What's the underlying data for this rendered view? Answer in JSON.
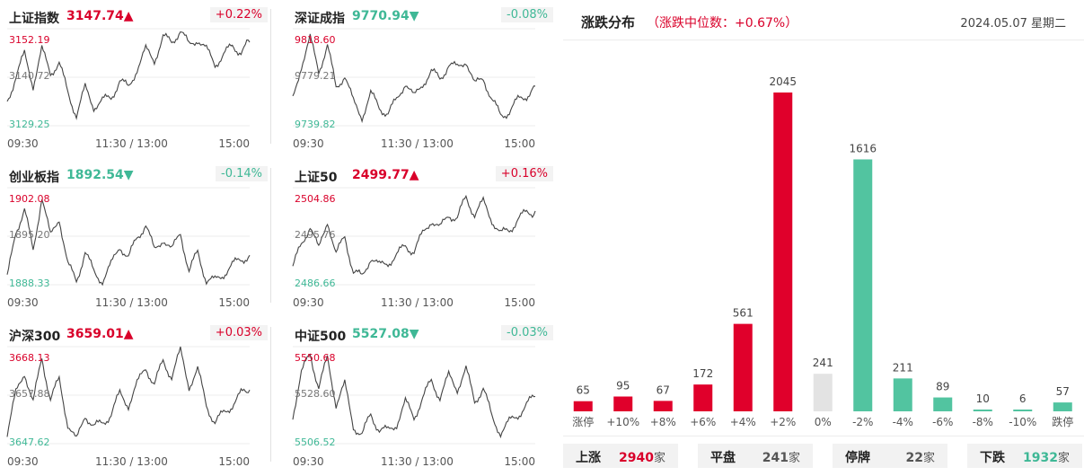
{
  "indices": [
    {
      "name": "上证指数",
      "value": "3147.74",
      "arrow": "▲",
      "dir": "up",
      "change": "+0.22%",
      "high": "3152.19",
      "mid": "3140.72",
      "low": "3129.25",
      "x_labels": [
        "09:30",
        "11:30 / 13:00",
        "15:00"
      ],
      "series": [
        3135,
        3141,
        3146,
        3139,
        3147,
        3142,
        3144,
        3137,
        3132,
        3138,
        3134,
        3135,
        3136,
        3140,
        3138,
        3143,
        3147,
        3145,
        3150,
        3149,
        3152,
        3148,
        3150,
        3147,
        3144,
        3146,
        3148,
        3147,
        3149
      ]
    },
    {
      "name": "深证成指",
      "value": "9770.94",
      "arrow": "▼",
      "dir": "dn",
      "change": "-0.08%",
      "high": "9818.60",
      "mid": "9779.21",
      "low": "9739.82",
      "x_labels": [
        "09:30",
        "11:30 / 13:00",
        "15:00"
      ],
      "series": [
        9760,
        9790,
        9810,
        9785,
        9805,
        9770,
        9782,
        9758,
        9748,
        9765,
        9755,
        9750,
        9760,
        9776,
        9762,
        9775,
        9783,
        9778,
        9790,
        9786,
        9794,
        9772,
        9780,
        9760,
        9748,
        9752,
        9760,
        9765,
        9772
      ]
    },
    {
      "name": "创业板指",
      "value": "1892.54",
      "arrow": "▼",
      "dir": "dn",
      "change": "-0.14%",
      "high": "1902.08",
      "mid": "1895.20",
      "low": "1888.33",
      "x_labels": [
        "09:30",
        "11:30 / 13:00",
        "15:00"
      ],
      "series": [
        1889,
        1896,
        1899,
        1893,
        1901,
        1895,
        1898,
        1891,
        1889,
        1893,
        1890,
        1889,
        1891,
        1894,
        1892,
        1895,
        1897,
        1893,
        1895,
        1893,
        1896,
        1890,
        1893,
        1889,
        1888.8,
        1890,
        1891,
        1892,
        1892.5
      ]
    },
    {
      "name": "上证50",
      "value": "2499.77",
      "arrow": "▲",
      "dir": "up",
      "change": "+0.16%",
      "high": "2504.86",
      "mid": "2495.76",
      "low": "2486.66",
      "x_labels": [
        "09:30",
        "11:30 / 13:00",
        "15:00"
      ],
      "series": [
        2490,
        2494,
        2498,
        2493,
        2499,
        2492,
        2496,
        2489,
        2488,
        2492,
        2490,
        2491,
        2492,
        2494,
        2493,
        2496,
        2499,
        2497,
        2500,
        2499,
        2503,
        2500,
        2502,
        2499,
        2496,
        2497,
        2499,
        2500,
        2500.5
      ]
    },
    {
      "name": "沪深300",
      "value": "3659.01",
      "arrow": "▲",
      "dir": "up",
      "change": "+0.03%",
      "high": "3668.13",
      "mid": "3657.88",
      "low": "3647.62",
      "x_labels": [
        "09:30",
        "11:30 / 13:00",
        "15:00"
      ],
      "series": [
        3650,
        3658,
        3663,
        3656,
        3666,
        3657,
        3661,
        3652,
        3648,
        3654,
        3651,
        3652,
        3654,
        3658,
        3656,
        3660,
        3664,
        3660,
        3665,
        3662,
        3667,
        3660,
        3663,
        3656,
        3652,
        3654,
        3656,
        3658,
        3659
      ]
    },
    {
      "name": "中证500",
      "value": "5527.08",
      "arrow": "▼",
      "dir": "dn",
      "change": "-0.03%",
      "high": "5550.68",
      "mid": "5528.60",
      "low": "5506.52",
      "x_labels": [
        "09:30",
        "11:30 / 13:00",
        "15:00"
      ],
      "series": [
        5520,
        5538,
        5548,
        5532,
        5545,
        5525,
        5533,
        5515,
        5510,
        5520,
        5513,
        5512,
        5516,
        5525,
        5519,
        5527,
        5535,
        5528,
        5537,
        5532,
        5540,
        5526,
        5532,
        5518,
        5512,
        5516,
        5520,
        5524,
        5528
      ]
    }
  ],
  "distribution": {
    "title": "涨跌分布",
    "median": "（涨跌中位数：+0.67%）",
    "date": "2024.05.07 星期二"
  },
  "chart_data": {
    "type": "bar",
    "categories": [
      "涨停",
      "+10%",
      "+8%",
      "+6%",
      "+4%",
      "+2%",
      "0%",
      "-2%",
      "-4%",
      "-6%",
      "-8%",
      "-10%",
      "跌停"
    ],
    "values": [
      65,
      95,
      67,
      172,
      561,
      2045,
      241,
      1616,
      211,
      89,
      10,
      6,
      57
    ],
    "colors": [
      "#e0002b",
      "#e0002b",
      "#e0002b",
      "#e0002b",
      "#e0002b",
      "#e0002b",
      "#e3e3e3",
      "#52c4a0",
      "#52c4a0",
      "#52c4a0",
      "#52c4a0",
      "#52c4a0",
      "#52c4a0"
    ],
    "title": "涨跌分布",
    "xlabel": "",
    "ylabel": "",
    "ylim": [
      0,
      2045
    ]
  },
  "summary": [
    {
      "label": "上涨",
      "value": "2940",
      "unit": "家",
      "color": "#d9002a"
    },
    {
      "label": "平盘",
      "value": "241",
      "unit": "家",
      "color": "#555555"
    },
    {
      "label": "停牌",
      "value": "22",
      "unit": "家",
      "color": "#555555"
    },
    {
      "label": "下跌",
      "value": "1932",
      "unit": "家",
      "color": "#3fb896"
    }
  ]
}
